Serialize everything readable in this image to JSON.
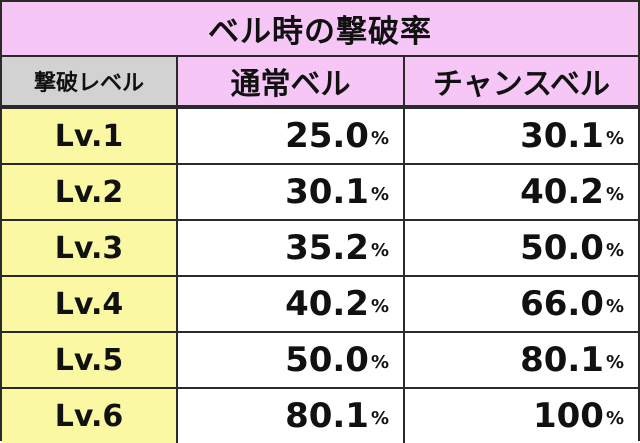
{
  "title": "ベル時の撃破率",
  "headers": {
    "level": "撃破レベル",
    "normal": "通常ベル",
    "chance": "チャンスベル"
  },
  "unit": "%",
  "rows": [
    {
      "level": "Lv.1",
      "normal": "25.0",
      "chance": "30.1"
    },
    {
      "level": "Lv.2",
      "normal": "30.1",
      "chance": "40.2"
    },
    {
      "level": "Lv.3",
      "normal": "35.2",
      "chance": "50.0"
    },
    {
      "level": "Lv.4",
      "normal": "40.2",
      "chance": "66.0"
    },
    {
      "level": "Lv.5",
      "normal": "50.0",
      "chance": "80.1"
    },
    {
      "level": "Lv.6",
      "normal": "80.1",
      "chance": "100"
    }
  ],
  "colors": {
    "title_bg": "#f6c6f6",
    "level_header_bg": "#d2d2d2",
    "level_cell_bg": "#fbf8a4",
    "value_cell_bg": "#ffffff",
    "border": "#2a2a2a"
  }
}
